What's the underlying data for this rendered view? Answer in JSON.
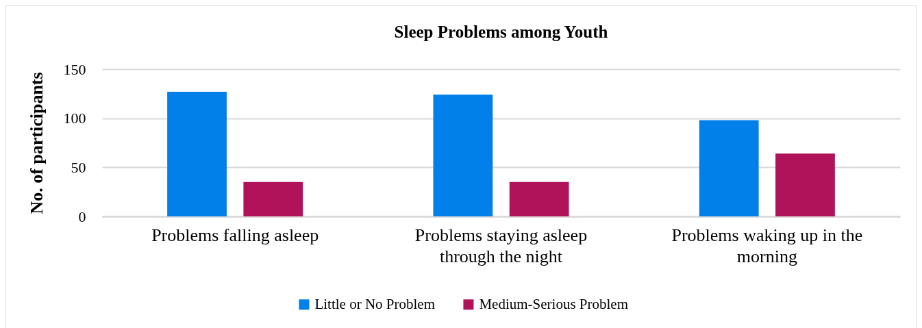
{
  "chart_data": {
    "type": "bar",
    "title": "Sleep Problems among Youth",
    "ylabel": "No. of participants",
    "categories": [
      "Problems falling asleep",
      "Problems staying asleep through the night",
      "Problems waking up in the morning"
    ],
    "series": [
      {
        "name": "Little or No Problem",
        "color": "#0080e8",
        "values": [
          127,
          124,
          98
        ]
      },
      {
        "name": "Medium-Serious Problem",
        "color": "#b0135a",
        "values": [
          35,
          35,
          64
        ]
      }
    ],
    "ylim": [
      0,
      150
    ],
    "yticks": [
      0,
      50,
      100,
      150
    ],
    "grid": "y",
    "legend": "bottom"
  }
}
